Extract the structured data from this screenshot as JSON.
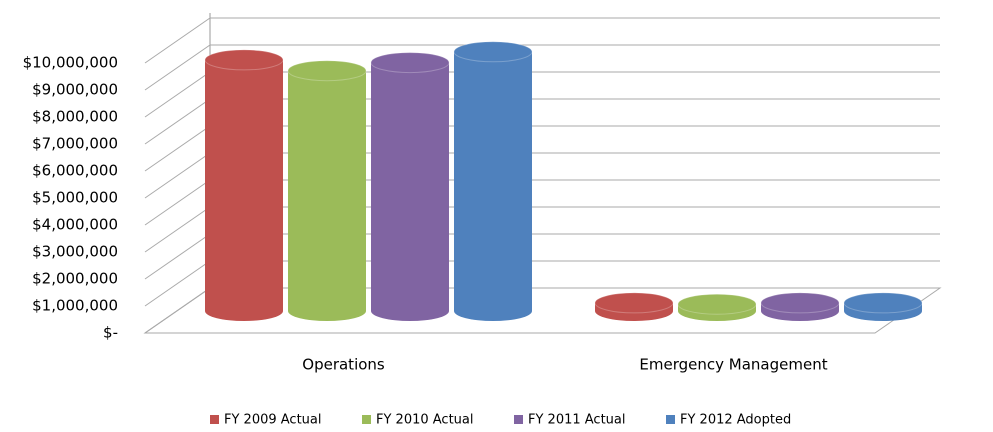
{
  "chart_data": {
    "type": "bar3d",
    "categories": [
      "Operations",
      "Emergency Management"
    ],
    "series": [
      {
        "name": "FY 2009 Actual",
        "color": "#c0504d",
        "values": [
          9300000,
          300000
        ]
      },
      {
        "name": "FY 2010 Actual",
        "color": "#9bbb59",
        "values": [
          8900000,
          250000
        ]
      },
      {
        "name": "FY 2011 Actual",
        "color": "#8064a2",
        "values": [
          9200000,
          300000
        ]
      },
      {
        "name": "FY 2012 Adopted",
        "color": "#4f81bd",
        "values": [
          9600000,
          300000
        ]
      }
    ],
    "ylim": [
      0,
      10000000
    ],
    "yticks": [
      {
        "value": 0,
        "label": "$-"
      },
      {
        "value": 1000000,
        "label": "$1,000,000"
      },
      {
        "value": 2000000,
        "label": "$2,000,000"
      },
      {
        "value": 3000000,
        "label": "$3,000,000"
      },
      {
        "value": 4000000,
        "label": "$4,000,000"
      },
      {
        "value": 5000000,
        "label": "$5,000,000"
      },
      {
        "value": 6000000,
        "label": "$6,000,000"
      },
      {
        "value": 7000000,
        "label": "$7,000,000"
      },
      {
        "value": 8000000,
        "label": "$8,000,000"
      },
      {
        "value": 9000000,
        "label": "$9,000,000"
      },
      {
        "value": 10000000,
        "label": "$10,000,000"
      }
    ],
    "grid": true,
    "legend": "bottom"
  }
}
